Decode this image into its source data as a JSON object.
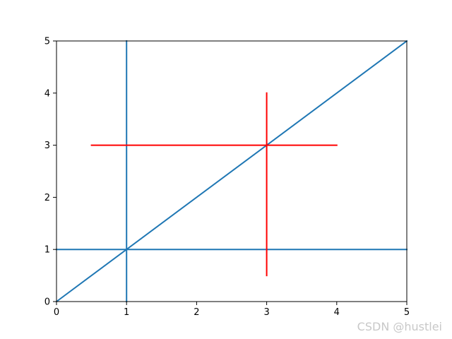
{
  "chart_data": {
    "type": "line",
    "xlim": [
      0,
      5
    ],
    "ylim": [
      0,
      5
    ],
    "xticks": [
      "0",
      "1",
      "2",
      "3",
      "4",
      "5"
    ],
    "yticks": [
      "0",
      "1",
      "2",
      "3",
      "4",
      "5"
    ],
    "grid": false,
    "series": [
      {
        "color": "#1f77b4",
        "x": [
          0,
          5
        ],
        "y": [
          0,
          5
        ]
      },
      {
        "color": "#1f77b4",
        "x": [
          1,
          1
        ],
        "y": [
          0,
          5
        ]
      },
      {
        "color": "#1f77b4",
        "x": [
          0,
          5
        ],
        "y": [
          1,
          1
        ]
      },
      {
        "color": "#ff0000",
        "x": [
          3,
          3
        ],
        "y": [
          0.5,
          4
        ]
      },
      {
        "color": "#ff0000",
        "x": [
          0.5,
          4
        ],
        "y": [
          3,
          3
        ]
      }
    ]
  },
  "watermark": "CSDN @hustlei"
}
